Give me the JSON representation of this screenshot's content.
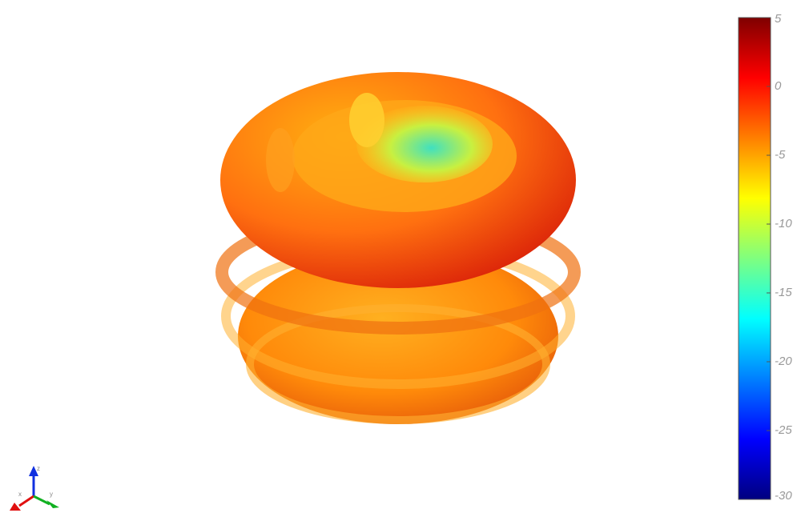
{
  "chart_data": {
    "type": "colorbar",
    "clim": [
      -30,
      5
    ],
    "cticks": [
      5,
      0,
      -5,
      -10,
      -15,
      -20,
      -25,
      -30
    ],
    "colormap": "jet"
  },
  "axes_triad": {
    "labels": [
      "x",
      "y",
      "z"
    ]
  }
}
